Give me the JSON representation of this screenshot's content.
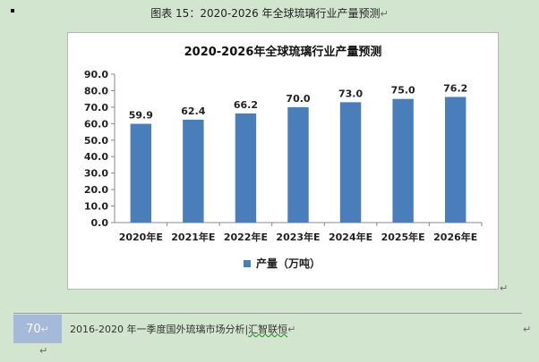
{
  "document": {
    "caption": "图表 15：2020-2026 年全球琉璃行业产量预测",
    "paragraph_mark": "↵",
    "page_number": "70",
    "footer_text": "2016-2020 年一季度国外琉璃市场分析|",
    "footer_brand": "汇智联恒"
  },
  "colors": {
    "bar": "#4a7ebb",
    "page_bg": "#d2e6cf",
    "page_box": "#a5b9d8"
  },
  "chart_data": {
    "type": "bar",
    "title": "2020-2026年全球琉璃行业产量预测",
    "categories": [
      "2020年E",
      "2021年E",
      "2022年E",
      "2023年E",
      "2024年E",
      "2025年E",
      "2026年E"
    ],
    "series": [
      {
        "name": "产量（万吨）",
        "values": [
          59.9,
          62.4,
          66.2,
          70.0,
          73.0,
          75.0,
          76.2
        ]
      }
    ],
    "data_labels": [
      "59.9",
      "62.4",
      "66.2",
      "70.0",
      "73.0",
      "75.0",
      "76.2"
    ],
    "ylim": [
      0,
      90
    ],
    "yticks": [
      "0.0",
      "10.0",
      "20.0",
      "30.0",
      "40.0",
      "50.0",
      "60.0",
      "70.0",
      "80.0",
      "90.0"
    ],
    "grid": false,
    "legend_position": "bottom"
  }
}
